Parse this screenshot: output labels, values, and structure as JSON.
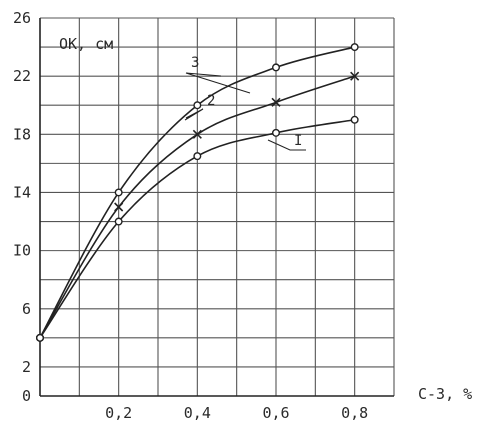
{
  "chart_data": {
    "type": "line",
    "ylabel": "OK, см",
    "xlabel": "C-3, %",
    "xlim": [
      0,
      0.9
    ],
    "ylim": [
      0,
      26
    ],
    "grid": true,
    "x_ticks": [
      {
        "value": 0.2,
        "label": "0,2"
      },
      {
        "value": 0.4,
        "label": "0,4"
      },
      {
        "value": 0.6,
        "label": "0,6"
      },
      {
        "value": 0.8,
        "label": "0,8"
      }
    ],
    "y_ticks": [
      {
        "value": 0,
        "label": "0"
      },
      {
        "value": 2,
        "label": "2"
      },
      {
        "value": 6,
        "label": "6"
      },
      {
        "value": 10,
        "label": "I0"
      },
      {
        "value": 14,
        "label": "I4"
      },
      {
        "value": 18,
        "label": "I8"
      },
      {
        "value": 22,
        "label": "22"
      },
      {
        "value": 26,
        "label": "26"
      }
    ],
    "series": [
      {
        "name": "I",
        "marker": "circle",
        "x": [
          0,
          0.2,
          0.4,
          0.6,
          0.8
        ],
        "values": [
          4,
          12,
          16.5,
          18.1,
          19
        ]
      },
      {
        "name": "2",
        "marker": "cross",
        "x": [
          0,
          0.2,
          0.4,
          0.6,
          0.8
        ],
        "values": [
          4,
          13,
          18,
          20.2,
          22
        ]
      },
      {
        "name": "3",
        "marker": "circle",
        "x": [
          0,
          0.2,
          0.4,
          0.6,
          0.8
        ],
        "values": [
          4,
          14,
          20,
          22.6,
          24
        ]
      }
    ]
  }
}
